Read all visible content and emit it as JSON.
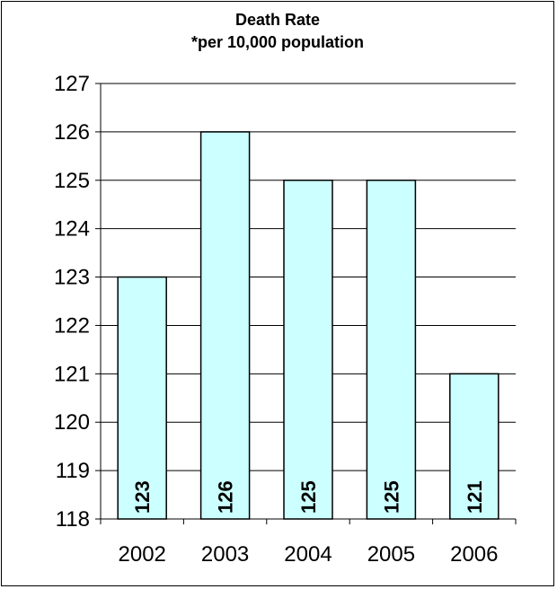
{
  "chart_data": {
    "type": "bar",
    "title": "Death Rate",
    "subtitle": "*per 10,000 population",
    "categories": [
      "2002",
      "2003",
      "2004",
      "2005",
      "2006"
    ],
    "values": [
      123,
      126,
      125,
      125,
      121
    ],
    "data_labels": [
      "123",
      "126",
      "125",
      "125",
      "121"
    ],
    "y_ticks": [
      "118",
      "119",
      "120",
      "121",
      "122",
      "123",
      "124",
      "125",
      "126",
      "127"
    ],
    "ylim": [
      118,
      127
    ],
    "xlabel": "",
    "ylabel": "",
    "grid": true,
    "legend": "none",
    "bar_color": "#ccffff",
    "bar_border": "#000000"
  }
}
